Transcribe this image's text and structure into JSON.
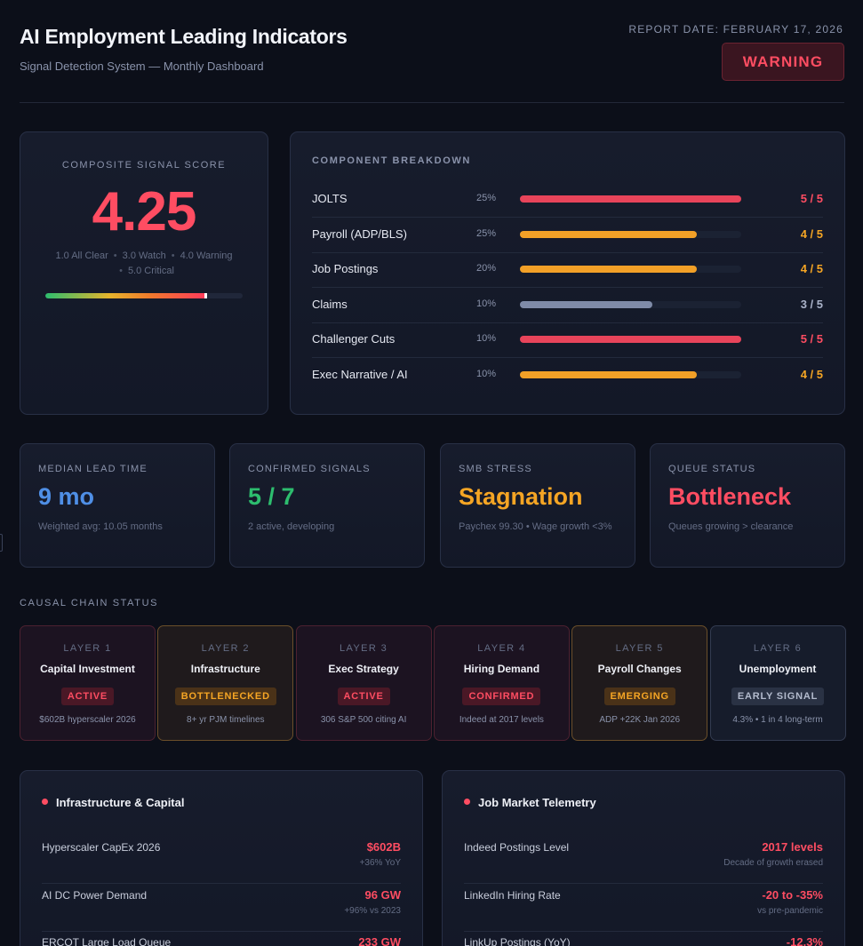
{
  "header": {
    "title": "AI Employment Leading Indicators",
    "subtitle": "Signal Detection System — Monthly Dashboard",
    "report_date": "REPORT DATE: FEBRUARY 17, 2026",
    "status_badge": "WARNING"
  },
  "colors": {
    "red": "#ff4d62",
    "orange": "#f5a524",
    "green": "#2dbd6e",
    "blue": "#4f8fe6",
    "gray": "#7f8ba8"
  },
  "composite": {
    "label": "COMPOSITE SIGNAL SCORE",
    "value": "4.25",
    "score": 4.25,
    "scale_min": 1.0,
    "scale_max": 5.0,
    "legend": [
      "1.0 All Clear",
      "3.0 Watch",
      "4.0 Warning",
      "5.0 Critical"
    ]
  },
  "components": {
    "title": "COMPONENT BREAKDOWN",
    "items": [
      {
        "name": "JOLTS",
        "weight": "25%",
        "score_text": "5 / 5",
        "score": 5,
        "max": 5,
        "color": "#e8445a"
      },
      {
        "name": "Payroll (ADP/BLS)",
        "weight": "25%",
        "score_text": "4 / 5",
        "score": 4,
        "max": 5,
        "color": "#f2a027"
      },
      {
        "name": "Job Postings",
        "weight": "20%",
        "score_text": "4 / 5",
        "score": 4,
        "max": 5,
        "color": "#f2a027"
      },
      {
        "name": "Claims",
        "weight": "10%",
        "score_text": "3 / 5",
        "score": 3,
        "max": 5,
        "color": "#7f8ba8"
      },
      {
        "name": "Challenger Cuts",
        "weight": "10%",
        "score_text": "5 / 5",
        "score": 5,
        "max": 5,
        "color": "#e8445a"
      },
      {
        "name": "Exec Narrative / AI",
        "weight": "10%",
        "score_text": "4 / 5",
        "score": 4,
        "max": 5,
        "color": "#f2a027"
      }
    ]
  },
  "metrics": [
    {
      "label": "MEDIAN LEAD TIME",
      "value": "9 mo",
      "desc": "Weighted avg: 10.05 months",
      "color": "#4f8fe6"
    },
    {
      "label": "CONFIRMED SIGNALS",
      "value": "5 / 7",
      "desc": "2 active, developing",
      "color": "#2dbd6e"
    },
    {
      "label": "SMB STRESS",
      "value": "Stagnation",
      "desc": "Paychex 99.30 • Wage growth <3%",
      "color": "#f5a524"
    },
    {
      "label": "QUEUE STATUS",
      "value": "Bottleneck",
      "desc": "Queues growing > clearance",
      "color": "#ff4d62"
    }
  ],
  "chain": {
    "title": "CAUSAL CHAIN STATUS",
    "layers": [
      {
        "layer": "LAYER 1",
        "name": "Capital Investment",
        "status": "ACTIVE",
        "note": "$602B hyperscaler 2026",
        "tone": "red"
      },
      {
        "layer": "LAYER 2",
        "name": "Infrastructure",
        "status": "BOTTLENECKED",
        "note": "8+ yr PJM timelines",
        "tone": "orange"
      },
      {
        "layer": "LAYER 3",
        "name": "Exec Strategy",
        "status": "ACTIVE",
        "note": "306 S&P 500 citing AI",
        "tone": "red"
      },
      {
        "layer": "LAYER 4",
        "name": "Hiring Demand",
        "status": "CONFIRMED",
        "note": "Indeed at 2017 levels",
        "tone": "red"
      },
      {
        "layer": "LAYER 5",
        "name": "Payroll Changes",
        "status": "EMERGING",
        "note": "ADP +22K Jan 2026",
        "tone": "orange"
      },
      {
        "layer": "LAYER 6",
        "name": "Unemployment",
        "status": "EARLY SIGNAL",
        "note": "4.3% • 1 in 4 long-term",
        "tone": "gray"
      }
    ]
  },
  "panels": [
    {
      "title": "Infrastructure & Capital",
      "rows": [
        {
          "label": "Hyperscaler CapEx 2026",
          "value": "$602B",
          "note": "+36% YoY"
        },
        {
          "label": "AI DC Power Demand",
          "value": "96 GW",
          "note": "+96% vs 2023"
        },
        {
          "label": "ERCOT Large Load Queue",
          "value": "233 GW",
          "note": ""
        }
      ]
    },
    {
      "title": "Job Market Telemetry",
      "rows": [
        {
          "label": "Indeed Postings Level",
          "value": "2017 levels",
          "note": "Decade of growth erased"
        },
        {
          "label": "LinkedIn Hiring Rate",
          "value": "-20 to -35%",
          "note": "vs pre-pandemic"
        },
        {
          "label": "LinkUp Postings (YoY)",
          "value": "-12.3%",
          "note": ""
        }
      ]
    }
  ]
}
